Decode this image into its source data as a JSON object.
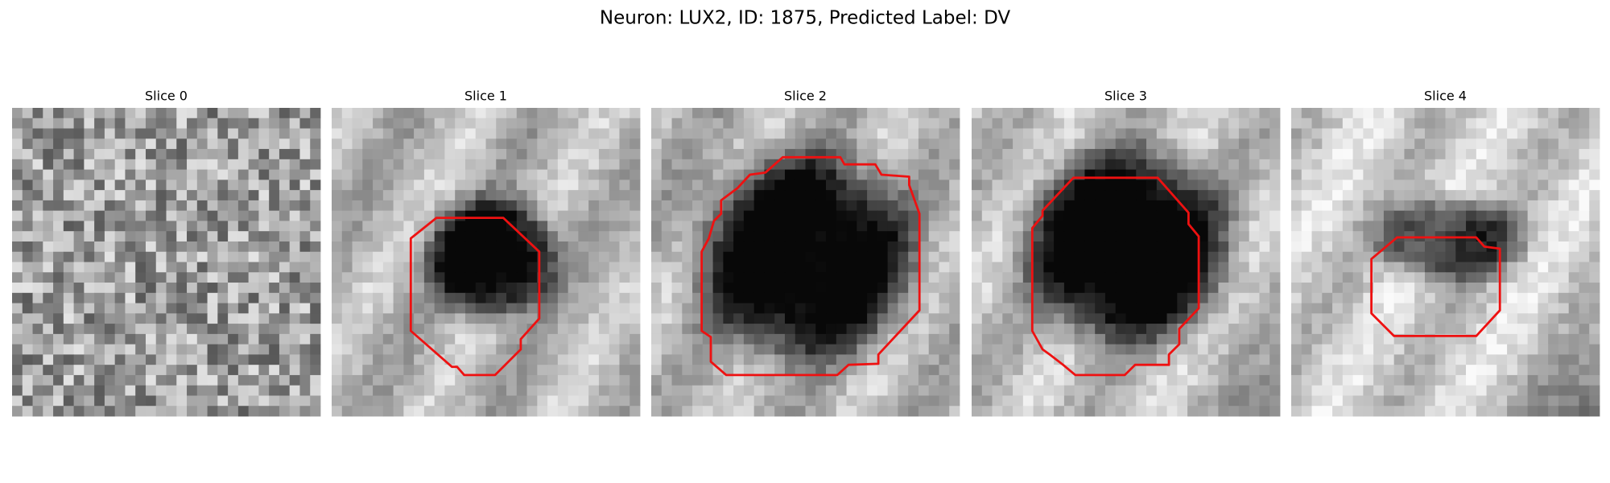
{
  "title": "Neuron: LUX2, ID: 1875, Predicted Label: DV",
  "panels": [
    {
      "title": "Slice 0"
    },
    {
      "title": "Slice 1"
    },
    {
      "title": "Slice 2"
    },
    {
      "title": "Slice 3"
    },
    {
      "title": "Slice 4"
    }
  ]
}
